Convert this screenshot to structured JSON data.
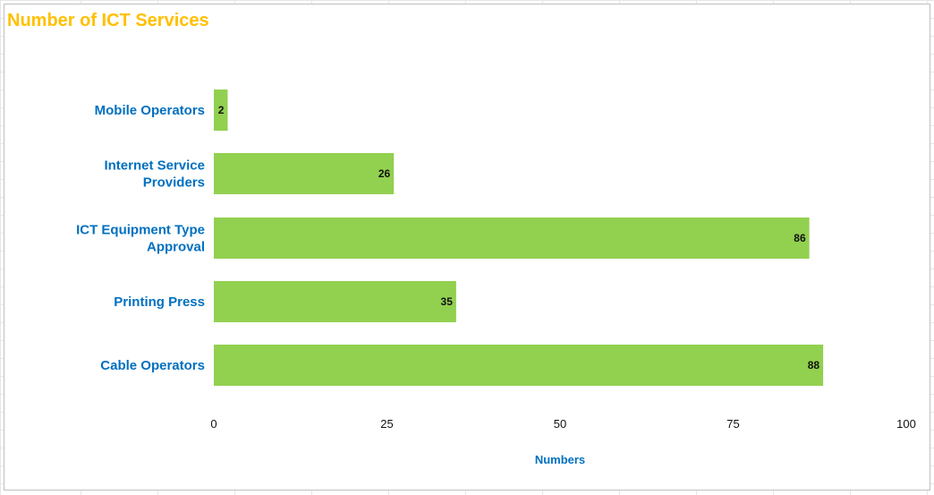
{
  "chart_data": {
    "type": "bar",
    "orientation": "horizontal",
    "title": "Number of ICT Services",
    "xlabel": "Numbers",
    "ylabel": "",
    "categories": [
      "Mobile Operators",
      "Internet Service Providers",
      "ICT Equipment Type Approval",
      "Printing Press",
      "Cable Operators"
    ],
    "category_lines": [
      [
        "Mobile Operators"
      ],
      [
        "Internet Service",
        "Providers"
      ],
      [
        "ICT Equipment Type",
        "Approval"
      ],
      [
        "Printing Press"
      ],
      [
        "Cable Operators"
      ]
    ],
    "values": [
      2,
      26,
      86,
      35,
      88
    ],
    "xlim": [
      0,
      100
    ],
    "xticks": [
      0,
      25,
      50,
      75,
      100
    ],
    "grid": false,
    "legend": "none",
    "data_labels": true
  },
  "colors": {
    "bar": "#92d050",
    "title": "#ffc000",
    "category_label": "#0070c0",
    "axis_title": "#0070c0",
    "frame": "#bfbfbf",
    "sheet_grid": "#e6e6e6"
  }
}
